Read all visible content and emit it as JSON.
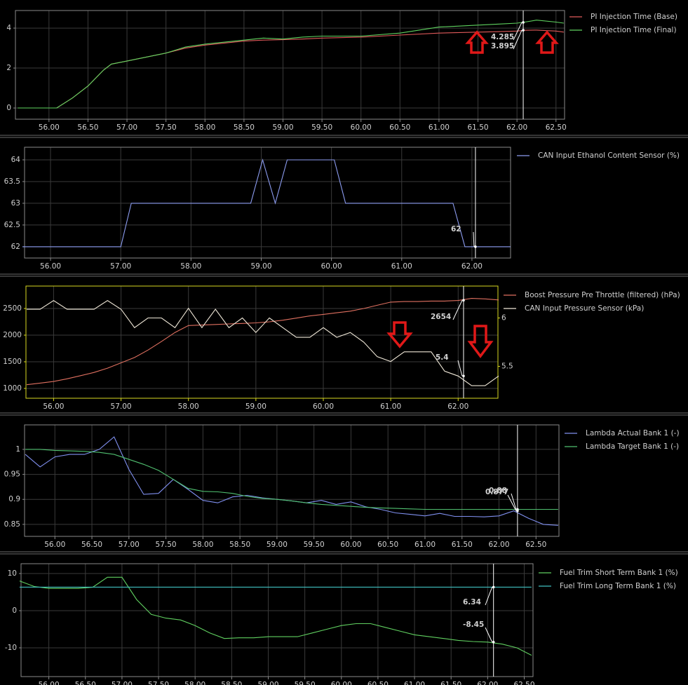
{
  "chart_data": [
    {
      "type": "line",
      "x": [
        55.6,
        56.1,
        56.3,
        56.5,
        56.7,
        56.8,
        57.0,
        57.5,
        57.75,
        58.0,
        58.5,
        58.75,
        59.0,
        59.25,
        59.5,
        60.0,
        60.5,
        61.0,
        61.5,
        61.75,
        62.0,
        62.1,
        62.25,
        62.5,
        62.6
      ],
      "series": [
        {
          "name": "PI Injection Time (Base)",
          "color": "#e05a5a",
          "values": [
            0,
            0,
            0.5,
            1.1,
            1.9,
            2.2,
            2.35,
            2.75,
            3.0,
            3.15,
            3.35,
            3.4,
            3.42,
            3.45,
            3.5,
            3.55,
            3.65,
            3.75,
            3.8,
            3.82,
            3.85,
            3.89,
            3.9,
            3.85,
            3.8
          ],
          "cursor_value": 3.895
        },
        {
          "name": "PI Injection Time (Final)",
          "color": "#5fd35f",
          "values": [
            0,
            0,
            0.5,
            1.1,
            1.9,
            2.2,
            2.35,
            2.75,
            3.05,
            3.2,
            3.4,
            3.5,
            3.45,
            3.55,
            3.6,
            3.6,
            3.75,
            4.05,
            4.15,
            4.2,
            4.25,
            4.3,
            4.4,
            4.3,
            4.25
          ],
          "cursor_value": 4.285
        }
      ],
      "xlim": [
        55.57,
        62.61
      ],
      "ylim": [
        -0.56,
        4.88
      ],
      "xticks": [
        {
          "value": 56,
          "label": "56.00"
        },
        {
          "value": 56.5,
          "label": "56.50"
        },
        {
          "value": 57,
          "label": "57.00"
        },
        {
          "value": 57.5,
          "label": "57.50"
        },
        {
          "value": 58,
          "label": "58.00"
        },
        {
          "value": 58.5,
          "label": "58.50"
        },
        {
          "value": 59,
          "label": "59.00"
        },
        {
          "value": 59.5,
          "label": "59.50"
        },
        {
          "value": 60,
          "label": "60.00"
        },
        {
          "value": 60.5,
          "label": "60.50"
        },
        {
          "value": 61,
          "label": "61.00"
        },
        {
          "value": 61.5,
          "label": "61.50"
        },
        {
          "value": 62,
          "label": "62.00"
        },
        {
          "value": 62.5,
          "label": "62.50"
        }
      ],
      "yticks": [
        0,
        2,
        4
      ],
      "grid": true,
      "cursor_x": 62.08
    },
    {
      "type": "line",
      "x": [
        55.6,
        56.0,
        57.0,
        57.15,
        58.0,
        58.85,
        59.02,
        59.2,
        59.37,
        60.0,
        60.04,
        60.2,
        61.0,
        61.73,
        61.9,
        62.0,
        62.55
      ],
      "series": [
        {
          "name": "CAN Input Ethanol Content Sensor (%)",
          "color": "#8c9cf0",
          "values": [
            62,
            62,
            62,
            63,
            63,
            63,
            64,
            63,
            64,
            64,
            64,
            63,
            63,
            63,
            62,
            62,
            62
          ],
          "cursor_value": 62
        }
      ],
      "xlim": [
        55.63,
        62.55
      ],
      "ylim": [
        61.74,
        64.29
      ],
      "xticks": [
        {
          "value": 56,
          "label": "56.00"
        },
        {
          "value": 57,
          "label": "57.00"
        },
        {
          "value": 58,
          "label": "58.00"
        },
        {
          "value": 59,
          "label": "59.00"
        },
        {
          "value": 60,
          "label": "60.00"
        },
        {
          "value": 61,
          "label": "61.00"
        },
        {
          "value": 62,
          "label": "62.00"
        }
      ],
      "yticks": [
        62,
        62.5,
        63,
        63.5,
        64
      ],
      "grid": true,
      "cursor_x": 62.05
    },
    {
      "type": "line",
      "x": [
        55.6,
        55.8,
        56.0,
        56.2,
        56.4,
        56.6,
        56.8,
        57.0,
        57.2,
        57.4,
        57.6,
        57.8,
        58.0,
        58.2,
        58.4,
        58.6,
        58.8,
        59.0,
        59.2,
        59.4,
        59.6,
        59.8,
        60.0,
        60.2,
        60.4,
        60.6,
        60.8,
        61.0,
        61.2,
        61.4,
        61.6,
        61.8,
        62.0,
        62.2,
        62.4,
        62.6
      ],
      "series": [
        {
          "name": "Boost Pressure Pre Throttle (filtered) (hPa)",
          "color": "#e07060",
          "values": [
            1070,
            1100,
            1130,
            1180,
            1240,
            1300,
            1380,
            1480,
            1580,
            1720,
            1880,
            2050,
            2180,
            2190,
            2200,
            2210,
            2220,
            2230,
            2250,
            2280,
            2320,
            2360,
            2390,
            2420,
            2450,
            2500,
            2560,
            2620,
            2630,
            2630,
            2640,
            2640,
            2650,
            2690,
            2680,
            2660
          ],
          "cursor_value": 2654
        },
        {
          "name": "CAN Input Pressure Sensor (kPa)",
          "color": "#f0e8d8",
          "axis": "y2",
          "values": [
            6.09,
            6.09,
            6.18,
            6.09,
            6.09,
            6.09,
            6.18,
            6.09,
            5.9,
            6.0,
            6.0,
            5.9,
            6.1,
            5.9,
            6.09,
            5.9,
            6.0,
            5.85,
            6.0,
            5.9,
            5.8,
            5.8,
            5.9,
            5.8,
            5.85,
            5.75,
            5.6,
            5.55,
            5.65,
            5.65,
            5.65,
            5.45,
            5.4,
            5.3,
            5.3,
            5.4
          ],
          "cursor_value": 5.4
        }
      ],
      "xlim": [
        55.59,
        62.59
      ],
      "ylim": [
        816,
        2921
      ],
      "y2lim": [
        5.17,
        6.33
      ],
      "xticks": [
        {
          "value": 56,
          "label": "56.00"
        },
        {
          "value": 57,
          "label": "57.00"
        },
        {
          "value": 58,
          "label": "58.00"
        },
        {
          "value": 59,
          "label": "59.00"
        },
        {
          "value": 60,
          "label": "60.00"
        },
        {
          "value": 61,
          "label": "61.00"
        },
        {
          "value": 62,
          "label": "62.00"
        }
      ],
      "yticks": [
        1000,
        1500,
        2000,
        2500
      ],
      "y2ticks": [
        5.5,
        6
      ],
      "grid": true,
      "axis_color": "#d8d820",
      "cursor_x": 62.08
    },
    {
      "type": "line",
      "x": [
        55.6,
        55.8,
        56.0,
        56.2,
        56.4,
        56.6,
        56.8,
        57.0,
        57.2,
        57.4,
        57.6,
        57.8,
        58.0,
        58.2,
        58.4,
        58.6,
        58.8,
        59.0,
        59.2,
        59.4,
        59.6,
        59.8,
        60.0,
        60.2,
        60.4,
        60.6,
        60.8,
        61.0,
        61.2,
        61.4,
        61.6,
        61.8,
        62.0,
        62.2,
        62.4,
        62.6,
        62.8
      ],
      "series": [
        {
          "name": "Lambda Actual Bank 1 (-)",
          "color": "#8090f0",
          "values": [
            0.99,
            0.965,
            0.985,
            0.99,
            0.99,
            1.0,
            1.025,
            0.96,
            0.91,
            0.912,
            0.94,
            0.92,
            0.898,
            0.893,
            0.905,
            0.908,
            0.903,
            0.9,
            0.897,
            0.893,
            0.898,
            0.89,
            0.895,
            0.885,
            0.88,
            0.873,
            0.87,
            0.867,
            0.872,
            0.866,
            0.866,
            0.865,
            0.867,
            0.877,
            0.862,
            0.85,
            0.848
          ],
          "cursor_value": 0.877
        },
        {
          "name": "Lambda Target Bank 1 (-)",
          "color": "#50c070",
          "values": [
            1.0,
            1.0,
            0.998,
            0.997,
            0.996,
            0.994,
            0.99,
            0.98,
            0.97,
            0.958,
            0.94,
            0.922,
            0.916,
            0.915,
            0.912,
            0.906,
            0.902,
            0.9,
            0.897,
            0.893,
            0.89,
            0.888,
            0.886,
            0.884,
            0.883,
            0.882,
            0.881,
            0.88,
            0.88,
            0.88,
            0.88,
            0.88,
            0.88,
            0.88,
            0.88,
            0.88,
            0.88
          ],
          "cursor_value": 0.88
        }
      ],
      "xlim": [
        55.59,
        62.81
      ],
      "ylim": [
        0.826,
        1.049
      ],
      "xticks": [
        {
          "value": 56,
          "label": "56.00"
        },
        {
          "value": 56.5,
          "label": "56.50"
        },
        {
          "value": 57,
          "label": "57.00"
        },
        {
          "value": 57.5,
          "label": "57.50"
        },
        {
          "value": 58,
          "label": "58.00"
        },
        {
          "value": 58.5,
          "label": "58.50"
        },
        {
          "value": 59,
          "label": "59.00"
        },
        {
          "value": 59.5,
          "label": "59.50"
        },
        {
          "value": 60,
          "label": "60.00"
        },
        {
          "value": 60.5,
          "label": "60.50"
        },
        {
          "value": 61,
          "label": "61.00"
        },
        {
          "value": 61.5,
          "label": "61.50"
        },
        {
          "value": 62,
          "label": "62.00"
        },
        {
          "value": 62.5,
          "label": "62.50"
        }
      ],
      "yticks": [
        0.85,
        0.9,
        0.95,
        1
      ],
      "grid": true,
      "cursor_x": 62.25
    },
    {
      "type": "line",
      "x": [
        55.6,
        55.8,
        56.0,
        56.2,
        56.4,
        56.6,
        56.8,
        57.0,
        57.2,
        57.4,
        57.6,
        57.8,
        58.0,
        58.2,
        58.4,
        58.6,
        58.8,
        59.0,
        59.2,
        59.4,
        59.6,
        59.8,
        60.0,
        60.2,
        60.4,
        60.6,
        60.8,
        61.0,
        61.2,
        61.4,
        61.6,
        61.8,
        62.0,
        62.2,
        62.4,
        62.6
      ],
      "series": [
        {
          "name": "Fuel Trim Short Term Bank 1 (%)",
          "color": "#60d060",
          "values": [
            8,
            6.5,
            6,
            6,
            6,
            6.3,
            9,
            9,
            3,
            -1,
            -2,
            -2.5,
            -4,
            -6,
            -7.5,
            -7.3,
            -7.3,
            -7,
            -7,
            -7,
            -6,
            -5,
            -4,
            -3.5,
            -3.5,
            -4.5,
            -5.5,
            -6.5,
            -7,
            -7.5,
            -8,
            -8.3,
            -8.45,
            -9,
            -10,
            -12
          ],
          "cursor_value": -8.45
        },
        {
          "name": "Fuel Trim Long Term Bank 1 (%)",
          "color": "#40c0c0",
          "values": [
            6.34,
            6.34,
            6.34,
            6.34,
            6.34,
            6.34,
            6.34,
            6.34,
            6.34,
            6.34,
            6.34,
            6.34,
            6.34,
            6.34,
            6.34,
            6.34,
            6.34,
            6.34,
            6.34,
            6.34,
            6.34,
            6.34,
            6.34,
            6.34,
            6.34,
            6.34,
            6.34,
            6.34,
            6.34,
            6.34,
            6.34,
            6.34,
            6.34,
            6.34,
            6.34,
            6.34
          ],
          "cursor_value": 6.34
        }
      ],
      "xlim": [
        55.62,
        62.62
      ],
      "ylim": [
        -17.74,
        12.64
      ],
      "xticks": [
        {
          "value": 56,
          "label": "56.00"
        },
        {
          "value": 56.5,
          "label": "56.50"
        },
        {
          "value": 57,
          "label": "57.00"
        },
        {
          "value": 57.5,
          "label": "57.50"
        },
        {
          "value": 58,
          "label": "58.00"
        },
        {
          "value": 58.5,
          "label": "58.50"
        },
        {
          "value": 59,
          "label": "59.00"
        },
        {
          "value": 59.5,
          "label": "59.50"
        },
        {
          "value": 60,
          "label": "60.00"
        },
        {
          "value": 60.5,
          "label": "60.50"
        },
        {
          "value": 61,
          "label": "61.00"
        },
        {
          "value": 61.5,
          "label": "61.50"
        },
        {
          "value": 62,
          "label": "62.00"
        },
        {
          "value": 62.5,
          "label": "62.50"
        }
      ],
      "yticks": [
        -10,
        0,
        10
      ],
      "grid": true,
      "cursor_x": 62.08
    }
  ]
}
